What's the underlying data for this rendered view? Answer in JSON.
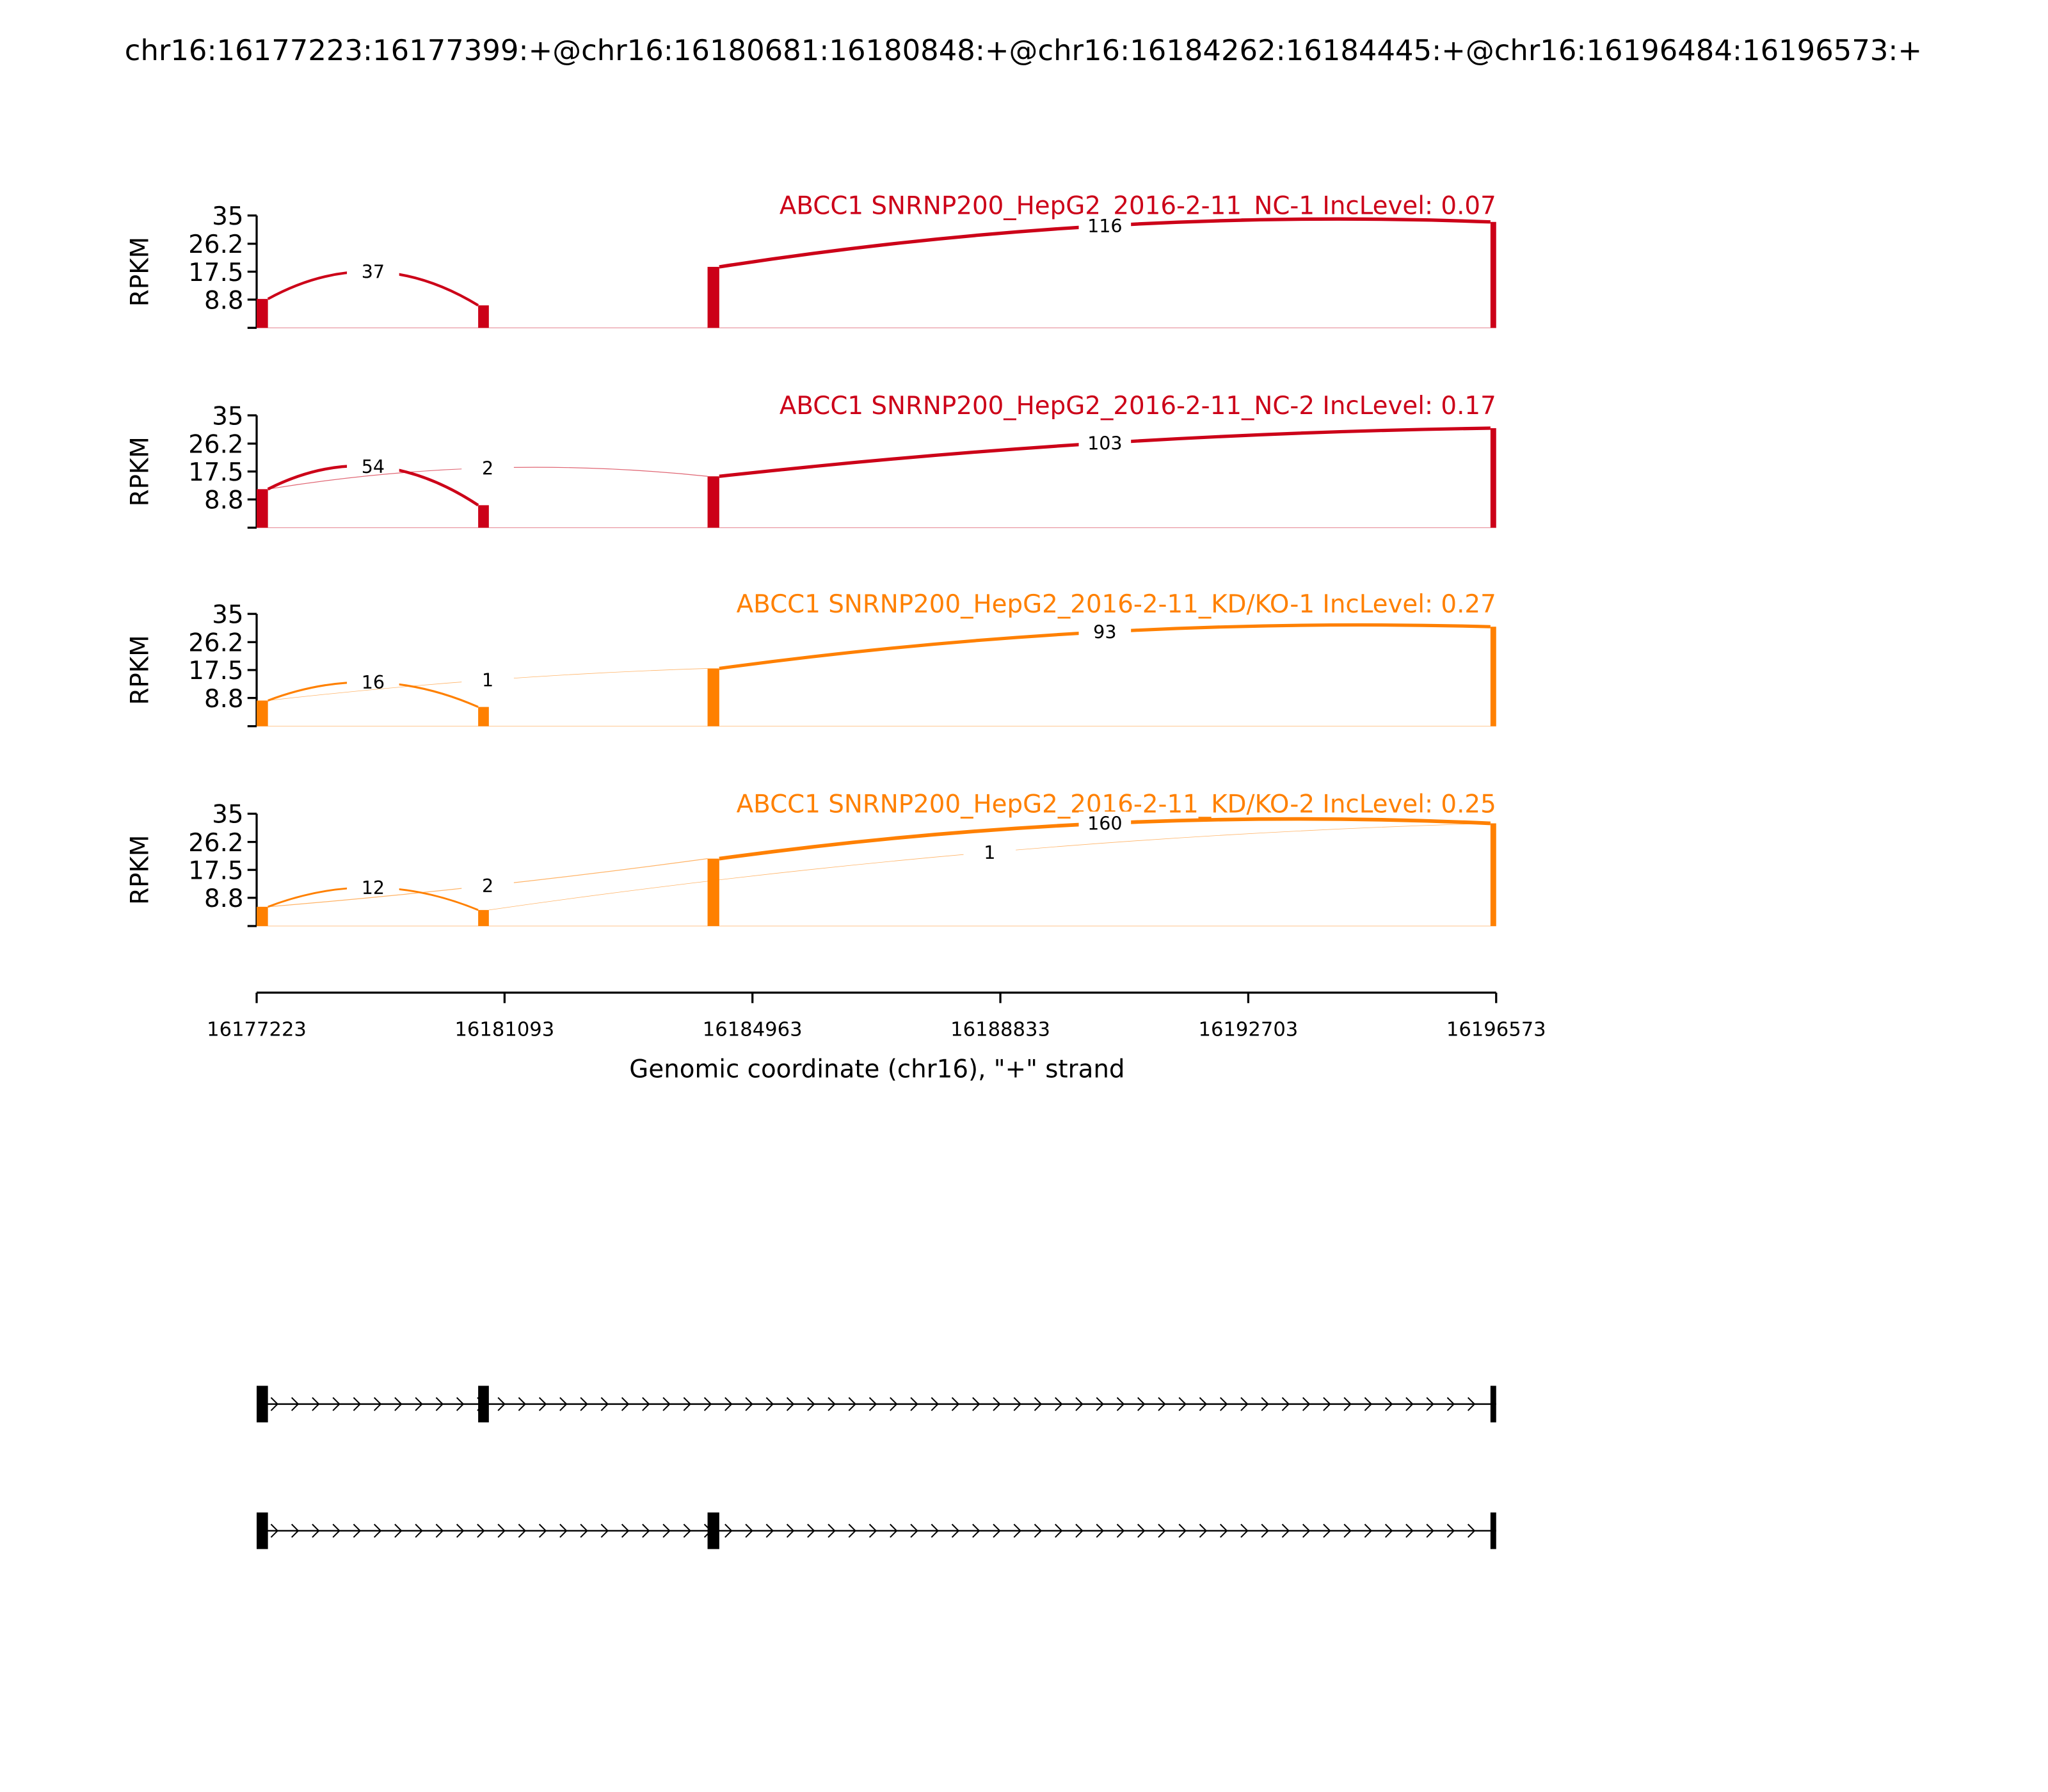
{
  "title": "chr16:16177223:16177399:+@chr16:16180681:16180848:+@chr16:16184262:16184445:+@chr16:16196484:16196573:+",
  "chart_data": {
    "type": "sashimi",
    "ylabel": "RPKM",
    "yticks": [
      "35",
      "26.2",
      "17.5",
      "8.8"
    ],
    "ylim": [
      0,
      35
    ],
    "xlabel": "Genomic coordinate (chr16), \"+\" strand",
    "xlim": [
      16177223,
      16196573
    ],
    "xticks": [
      "16177223",
      "16181093",
      "16184963",
      "16188833",
      "16192703",
      "16196573"
    ],
    "exons": [
      [
        16177223,
        16177399
      ],
      [
        16180681,
        16180848
      ],
      [
        16184262,
        16184445
      ],
      [
        16196484,
        16196573
      ]
    ],
    "tracks": [
      {
        "label": "ABCC1 SNRNP200_HepG2_2016-2-11_NC-1 IncLevel: 0.07",
        "color": "#cc0018",
        "exon_coverage": [
          9,
          7,
          19,
          33
        ],
        "junctions": [
          {
            "from": 0,
            "to": 1,
            "count": "37",
            "peak_rpkm": 17.5
          },
          {
            "from": 2,
            "to": 3,
            "count": "116",
            "peak_rpkm": 31.8
          }
        ]
      },
      {
        "label": "ABCC1 SNRNP200_HepG2_2016-2-11_NC-2 IncLevel: 0.17",
        "color": "#cc0018",
        "exon_coverage": [
          12,
          7,
          16,
          31
        ],
        "junctions": [
          {
            "from": 0,
            "to": 1,
            "count": "54",
            "peak_rpkm": 19.1
          },
          {
            "from": 0,
            "to": 2,
            "count": "2",
            "peak_rpkm": 18.6
          },
          {
            "from": 2,
            "to": 3,
            "count": "103",
            "peak_rpkm": 26.4
          }
        ]
      },
      {
        "label": "ABCC1 SNRNP200_HepG2_2016-2-11_KD/KO-1 IncLevel: 0.27",
        "color": "#ff8000",
        "exon_coverage": [
          8,
          6,
          18,
          31
        ],
        "junctions": [
          {
            "from": 0,
            "to": 1,
            "count": "16",
            "peak_rpkm": 13.7
          },
          {
            "from": 0,
            "to": 2,
            "count": "1",
            "peak_rpkm": 14.4
          },
          {
            "from": 2,
            "to": 3,
            "count": "93",
            "peak_rpkm": 29.4
          }
        ]
      },
      {
        "label": "ABCC1 SNRNP200_HepG2_2016-2-11_KD/KO-2 IncLevel: 0.25",
        "color": "#ff8000",
        "exon_coverage": [
          6,
          5,
          21,
          32
        ],
        "junctions": [
          {
            "from": 0,
            "to": 1,
            "count": "12",
            "peak_rpkm": 12.0
          },
          {
            "from": 0,
            "to": 2,
            "count": "2",
            "peak_rpkm": 12.6
          },
          {
            "from": 2,
            "to": 3,
            "count": "160",
            "peak_rpkm": 32.0
          },
          {
            "from": 1,
            "to": 3,
            "count": "1",
            "peak_rpkm": 23.0
          }
        ]
      }
    ],
    "isoforms": [
      [
        0,
        1,
        3
      ],
      [
        0,
        2,
        3
      ]
    ]
  }
}
